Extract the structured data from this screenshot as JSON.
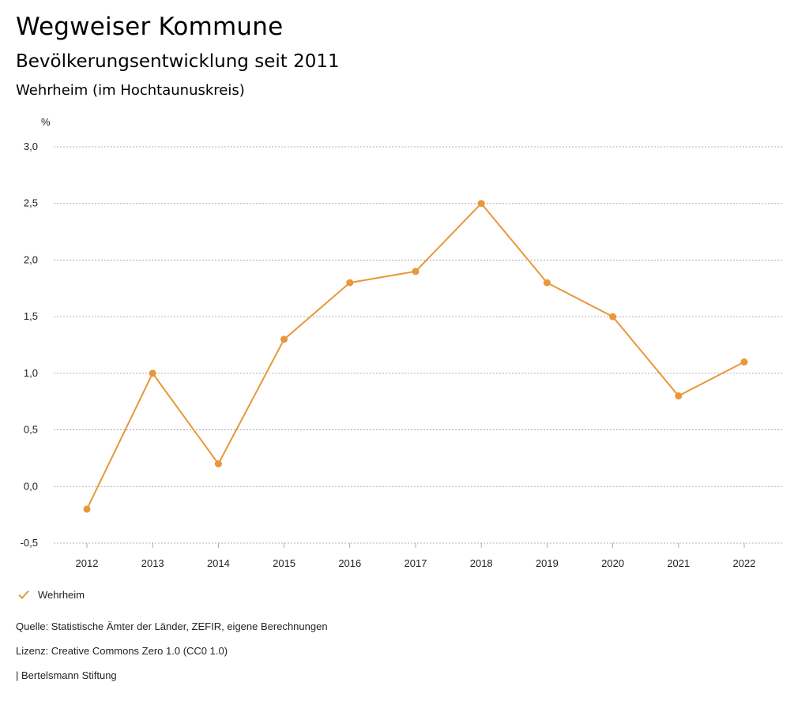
{
  "header": {
    "title": "Wegweiser Kommune",
    "subtitle": "Bevölkerungsentwicklung seit 2011",
    "region": "Wehrheim (im Hochtaunuskreis)"
  },
  "chart_data": {
    "type": "line",
    "ylabel": "%",
    "ylim": [
      -0.5,
      3.0
    ],
    "yticks": [
      3.0,
      2.5,
      2.0,
      1.5,
      1.0,
      0.5,
      0.0,
      -0.5
    ],
    "ytick_labels": [
      "3,0",
      "2,5",
      "2,0",
      "1,5",
      "1,0",
      "0,5",
      "0,0",
      "-0,5"
    ],
    "categories": [
      "2012",
      "2013",
      "2014",
      "2015",
      "2016",
      "2017",
      "2018",
      "2019",
      "2020",
      "2021",
      "2022"
    ],
    "series": [
      {
        "name": "Wehrheim",
        "color": "#E8973A",
        "values": [
          -0.2,
          1.0,
          0.2,
          1.3,
          1.8,
          1.9,
          2.5,
          1.8,
          1.5,
          0.8,
          1.1
        ]
      }
    ],
    "grid": true,
    "legend": "bottom-left"
  },
  "legend": {
    "label": "Wehrheim"
  },
  "footer": {
    "source": "Quelle: Statistische Ämter der Länder, ZEFIR, eigene Berechnungen",
    "license": "Lizenz: Creative Commons Zero 1.0 (CC0 1.0)",
    "publisher": "| Bertelsmann Stiftung"
  }
}
